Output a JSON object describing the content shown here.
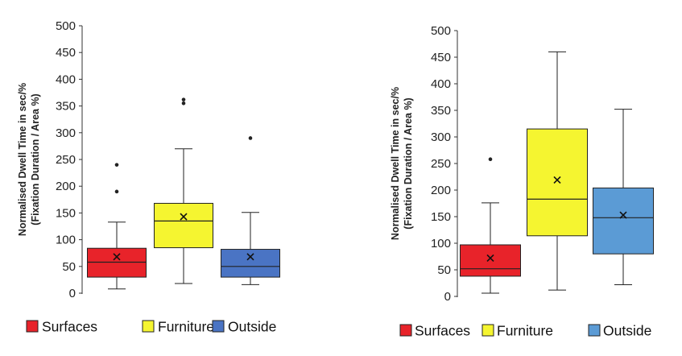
{
  "chart_data": [
    {
      "type": "boxplot",
      "ylabel_lines": [
        "Normalised Dwell Time in sec/%",
        "(Fixation Duration / Area %)"
      ],
      "ylim": [
        0,
        500
      ],
      "yticks": [
        0,
        50,
        100,
        150,
        200,
        250,
        300,
        350,
        400,
        450,
        500
      ],
      "legend_position": "bottom",
      "series": [
        {
          "name": "Surfaces",
          "color": "#e8232a",
          "min": 8,
          "q1": 30,
          "median": 58,
          "q3": 84,
          "max": 133,
          "mean": 68,
          "outliers": [
            190,
            240
          ]
        },
        {
          "name": "Furniture",
          "color": "#f5f530",
          "min": 18,
          "q1": 85,
          "median": 135,
          "q3": 168,
          "max": 270,
          "mean": 143,
          "outliers": [
            355,
            362
          ]
        },
        {
          "name": "Outside",
          "color": "#4a74c4",
          "min": 16,
          "q1": 30,
          "median": 50,
          "q3": 82,
          "max": 151,
          "mean": 68,
          "outliers": [
            290
          ]
        }
      ]
    },
    {
      "type": "boxplot",
      "ylabel_lines": [
        "Normalised Dwell Time in sec/%",
        "(Fixation Duration / Area %)"
      ],
      "ylim": [
        0,
        500
      ],
      "yticks": [
        0,
        50,
        100,
        150,
        200,
        250,
        300,
        350,
        400,
        450,
        500
      ],
      "legend_position": "bottom",
      "series": [
        {
          "name": "Surfaces",
          "color": "#e8232a",
          "min": 6,
          "q1": 38,
          "median": 52,
          "q3": 97,
          "max": 176,
          "mean": 72,
          "outliers": [
            258
          ]
        },
        {
          "name": "Furniture",
          "color": "#f5f530",
          "min": 12,
          "q1": 114,
          "median": 183,
          "q3": 315,
          "max": 460,
          "mean": 219,
          "outliers": []
        },
        {
          "name": "Outside",
          "color": "#5b9bd5",
          "min": 22,
          "q1": 80,
          "median": 148,
          "q3": 204,
          "max": 352,
          "mean": 153,
          "outliers": []
        }
      ]
    }
  ]
}
